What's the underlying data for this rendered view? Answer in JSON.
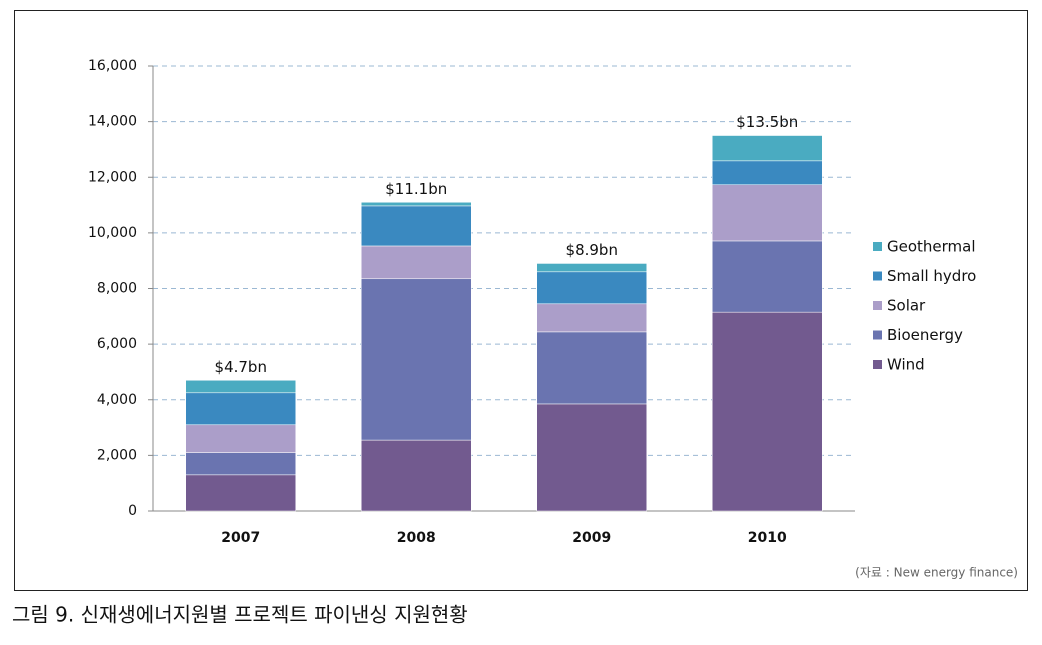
{
  "chart_data": {
    "type": "stacked_bar",
    "categories": [
      "2007",
      "2008",
      "2009",
      "2010"
    ],
    "series": [
      {
        "name": "Wind",
        "color": "#725a8f",
        "values": [
          1300,
          2550,
          3850,
          7150
        ]
      },
      {
        "name": "Bioenergy",
        "color": "#6a74b0",
        "values": [
          800,
          5800,
          2590,
          2560
        ]
      },
      {
        "name": "Solar",
        "color": "#ab9ec9",
        "values": [
          1000,
          1180,
          1010,
          2020
        ]
      },
      {
        "name": "Small hydro",
        "color": "#3a89c0",
        "values": [
          1150,
          1440,
          1150,
          860
        ]
      },
      {
        "name": "Geothermal",
        "color": "#4aabc1",
        "values": [
          450,
          130,
          300,
          910
        ]
      }
    ],
    "annotations": [
      "$4.7bn",
      "$11.1bn",
      "$8.9bn",
      "$13.5bn"
    ],
    "ylim": [
      0,
      16000
    ],
    "yticks": [
      0,
      {
        "value": 2000,
        "label": "2,000"
      },
      {
        "value": 4000,
        "label": "4,000"
      },
      {
        "value": 6000,
        "label": "6,000"
      },
      {
        "value": 8000,
        "label": "8,000"
      },
      {
        "value": 10000,
        "label": "10,000"
      },
      {
        "value": 12000,
        "label": "12,000"
      },
      {
        "value": 14000,
        "label": "14,000"
      },
      {
        "value": 16000,
        "label": "16,000"
      }
    ],
    "grid": true,
    "legend": "right",
    "source": "(자료 : New energy finance)",
    "caption": "그림 9. 신재생에너지원별 프로젝트 파이낸싱 지원현황"
  }
}
